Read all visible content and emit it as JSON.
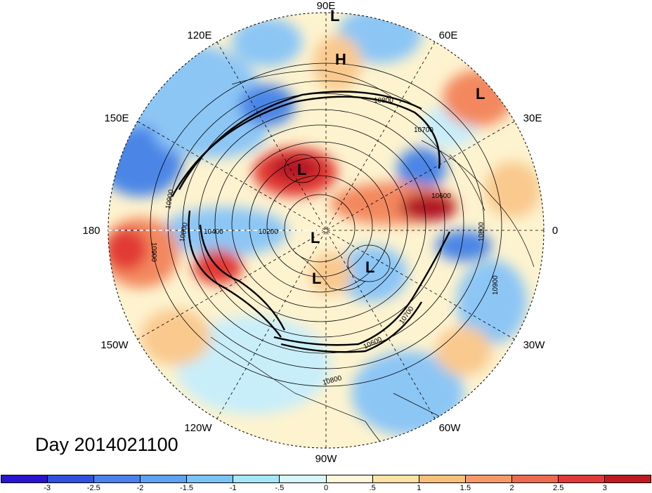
{
  "map": {
    "projection": "north-polar-stereographic",
    "longitude_labels": {
      "top": "90E",
      "top_right": "60E",
      "right_upper": "30E",
      "right": "0",
      "right_lower": "30W",
      "bottom_right": "60W",
      "bottom": "90W",
      "bottom_left": "120W",
      "left_lower": "150W",
      "left": "180",
      "left_upper": "150E",
      "top_left": "120E"
    },
    "contour_labels": [
      "10800",
      "10700",
      "10600",
      "10900",
      "10800",
      "10400",
      "10200",
      "10900",
      "10800",
      "10700",
      "10600",
      "10900",
      "10800"
    ],
    "centers": [
      {
        "mark": "L"
      },
      {
        "mark": "H"
      },
      {
        "mark": "L"
      },
      {
        "mark": "L"
      },
      {
        "mark": "L"
      },
      {
        "mark": "L"
      },
      {
        "mark": "L"
      }
    ],
    "colors": {
      "deep_blue": "#1f3fd1",
      "mid_blue": "#4c86e6",
      "light_blue": "#8cc6f5",
      "pale_blue": "#c8eefa",
      "pale_yellow": "#fdf3cf",
      "light_orange": "#f9c98e",
      "orange": "#f3885f",
      "red": "#e23b36",
      "dark_red": "#b21828"
    }
  },
  "day_label": "Day 2014021100",
  "colorbar": {
    "colors": [
      "#2a14d0",
      "#3050e0",
      "#4a82ea",
      "#5ea2f0",
      "#7cc3f5",
      "#a6e6fb",
      "#d7f6fc",
      "#fdf6d8",
      "#fce2a4",
      "#f8c07a",
      "#f49a68",
      "#ec6a52",
      "#df3a38",
      "#bf1a22"
    ],
    "ticks": [
      "-3",
      "-2.5",
      "-2",
      "-1.5",
      "-1",
      "-.5",
      "0",
      ".5",
      "1",
      "1.5",
      "2",
      "2.5",
      "3"
    ]
  }
}
